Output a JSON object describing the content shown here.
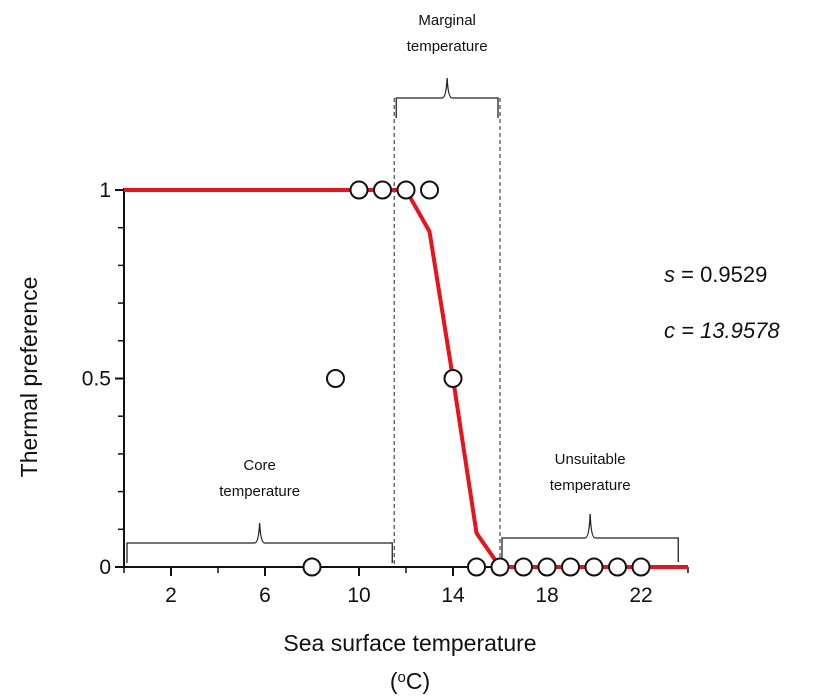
{
  "chart_data": {
    "type": "scatter",
    "xlabel": "Sea surface temperature",
    "xunit_prefix": "(",
    "xunit_sup": "o",
    "xunit_suffix": "C)",
    "ylabel": "Thermal preference",
    "xlim": [
      0,
      24
    ],
    "ylim": [
      0,
      1
    ],
    "xticks": [
      2,
      6,
      10,
      14,
      18,
      22
    ],
    "xticks_minor": [
      0,
      4,
      8,
      12,
      16,
      20,
      24
    ],
    "yticks": [
      {
        "value": 1,
        "label": "1"
      },
      {
        "value": 0.5,
        "label": "0.5"
      },
      {
        "value": 0,
        "label": "0"
      }
    ],
    "yticks_minor": [
      0.1,
      0.2,
      0.3,
      0.4,
      0.6,
      0.7,
      0.8,
      0.9
    ],
    "observations": [
      {
        "x": 8,
        "y": 0
      },
      {
        "x": 9,
        "y": 0.5
      },
      {
        "x": 10,
        "y": 1
      },
      {
        "x": 11,
        "y": 1
      },
      {
        "x": 12,
        "y": 1
      },
      {
        "x": 13,
        "y": 1
      },
      {
        "x": 14,
        "y": 0.5
      },
      {
        "x": 15,
        "y": 0
      },
      {
        "x": 16,
        "y": 0
      },
      {
        "x": 17,
        "y": 0
      },
      {
        "x": 18,
        "y": 0
      },
      {
        "x": 19,
        "y": 0
      },
      {
        "x": 20,
        "y": 0
      },
      {
        "x": 21,
        "y": 0
      },
      {
        "x": 22,
        "y": 0
      }
    ],
    "fitted_curve": {
      "color": "#e8141c",
      "x": [
        0,
        12,
        13,
        14,
        15,
        16,
        24
      ],
      "y": [
        1,
        1,
        0.89,
        0.5,
        0.09,
        0,
        0
      ]
    },
    "marginal_bounds": [
      11.5,
      16
    ],
    "regions": [
      {
        "lines": [
          "Core",
          "temperature"
        ],
        "x_range": [
          0,
          11.5
        ]
      },
      {
        "lines": [
          "Marginal",
          "temperature"
        ],
        "x_range": [
          11.5,
          16
        ]
      },
      {
        "lines": [
          "Unsuitable",
          "temperature"
        ],
        "x_range": [
          16,
          23.5
        ]
      }
    ],
    "stats": [
      {
        "symbol": "s",
        "value": "0.9529"
      },
      {
        "symbol": "c",
        "value": "13.9578"
      }
    ]
  }
}
